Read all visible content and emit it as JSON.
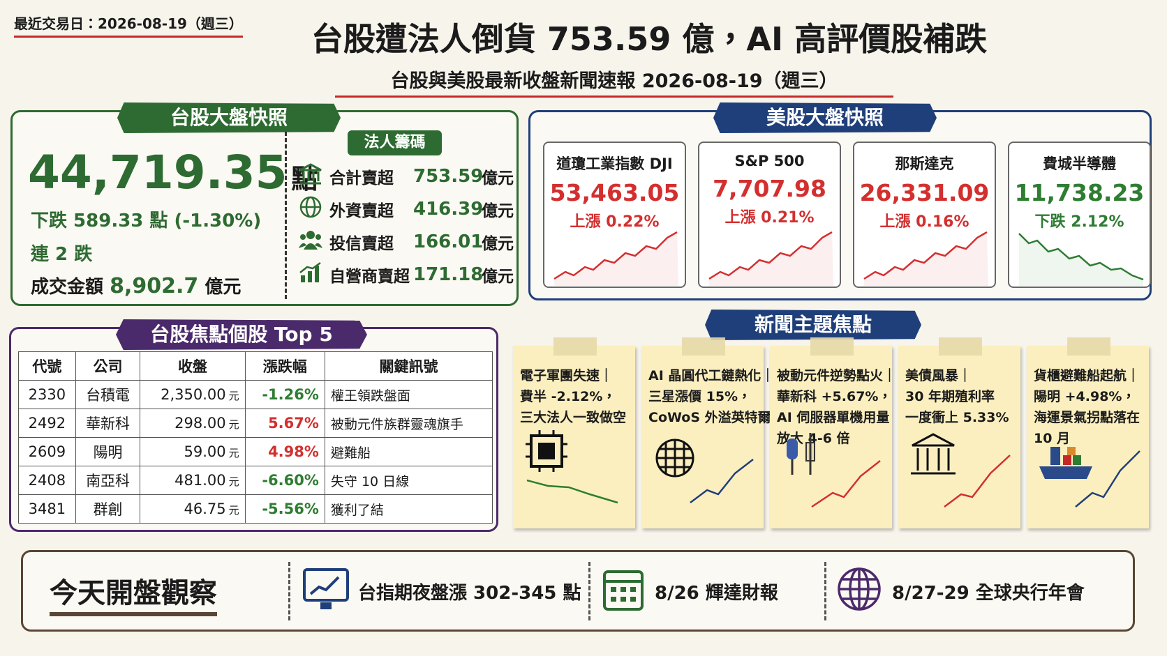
{
  "header": {
    "date_label": "最近交易日：2026-08-19（週三）",
    "title": "台股遭法人倒貨 753.59 億，AI 高評價股補跌",
    "subtitle": "台股與美股最新收盤新聞速報 2026-08-19（週三）"
  },
  "tw_market": {
    "title": "台股大盤快照",
    "index": "44,719.35",
    "index_unit": "點",
    "change": "下跌 589.33 點 (-1.30%)",
    "streak": "連 2 跌",
    "turnover_label": "成交金額",
    "turnover": "8,902.7",
    "turnover_unit": "億元",
    "institutional": {
      "title": "法人籌碼",
      "rows": [
        {
          "label": "合計賣超",
          "value": "753.59",
          "unit": "億元"
        },
        {
          "label": "外資賣超",
          "value": "416.39",
          "unit": "億元"
        },
        {
          "label": "投信賣超",
          "value": "166.01",
          "unit": "億元"
        },
        {
          "label": "自營商賣超",
          "value": "171.18",
          "unit": "億元"
        }
      ]
    }
  },
  "us_market": {
    "title": "美股大盤快照",
    "indices": [
      {
        "name": "道瓊工業指數 DJI",
        "value": "53,463.05",
        "change": "上漲 0.22%",
        "color": "#d32f2f"
      },
      {
        "name": "S&P 500",
        "value": "7,707.98",
        "change": "上漲 0.21%",
        "color": "#d32f2f"
      },
      {
        "name": "那斯達克",
        "value": "26,331.09",
        "change": "上漲 0.16%",
        "color": "#d32f2f"
      },
      {
        "name": "費城半導體",
        "value": "11,738.23",
        "change": "下跌 2.12%",
        "color": "#2e7d32"
      }
    ]
  },
  "top5": {
    "title": "台股焦點個股 Top 5",
    "columns": [
      "代號",
      "公司",
      "收盤",
      "漲跌幅",
      "關鍵訊號"
    ],
    "rows": [
      {
        "code": "2330",
        "name": "台積電",
        "close": "2,350.00",
        "unit": "元",
        "change": "-1.26%",
        "color": "#2e7d32",
        "signal": "權王領跌盤面"
      },
      {
        "code": "2492",
        "name": "華新科",
        "close": "298.00",
        "unit": "元",
        "change": "5.67%",
        "color": "#d32f2f",
        "signal": "被動元件族群靈魂旗手"
      },
      {
        "code": "2609",
        "name": "陽明",
        "close": "59.00",
        "unit": "元",
        "change": "4.98%",
        "color": "#d32f2f",
        "signal": "避難船"
      },
      {
        "code": "2408",
        "name": "南亞科",
        "close": "481.00",
        "unit": "元",
        "change": "-6.60%",
        "color": "#2e7d32",
        "signal": "失守 10 日線"
      },
      {
        "code": "3481",
        "name": "群創",
        "close": "46.75",
        "unit": "元",
        "change": "-5.56%",
        "color": "#2e7d32",
        "signal": "獲利了結"
      }
    ]
  },
  "news": {
    "title": "新聞主題焦點",
    "items": [
      {
        "lines": [
          "電子軍團失速｜",
          "費半 -2.12%，",
          "三大法人一致做空"
        ]
      },
      {
        "lines": [
          "AI 晶圓代工鏈熱化｜",
          "三星漲價 15%，",
          "CoWoS 外溢英特爾"
        ]
      },
      {
        "lines": [
          "被動元件逆勢點火｜",
          "華新科 +5.67%，",
          "AI 伺服器單機用量",
          "放大 4-6 倍"
        ]
      },
      {
        "lines": [
          "美債風暴｜",
          "30 年期殖利率",
          "一度衝上 5.33%"
        ]
      },
      {
        "lines": [
          "貨櫃避難船起航｜",
          "陽明 +4.98%，",
          "海運景氣拐點落在",
          "10 月"
        ]
      }
    ]
  },
  "outlook": {
    "title": "今天開盤觀察",
    "items": [
      "台指期夜盤漲 302-345 點",
      "8/26 輝達財報",
      "8/27-29 全球央行年會"
    ]
  }
}
